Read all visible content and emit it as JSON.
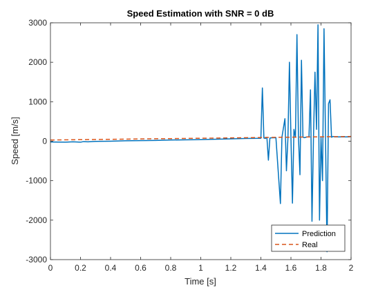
{
  "colors": {
    "prediction": "#0072BD",
    "real": "#D95319",
    "axis": "#262626",
    "background": "#ffffff"
  },
  "chart_data": {
    "type": "line",
    "title": "Speed Estimation with SNR = 0 dB",
    "xlabel": "Time [s]",
    "ylabel": "Speed [m/s]",
    "xlim": [
      0,
      2
    ],
    "ylim": [
      -3000,
      3000
    ],
    "xticks": [
      0,
      0.2,
      0.4,
      0.6,
      0.8,
      1,
      1.2,
      1.4,
      1.6,
      1.8,
      2
    ],
    "xtick_labels": [
      "0",
      "0.2",
      "0.4",
      "0.6",
      "0.8",
      "1",
      "1.2",
      "1.4",
      "1.6",
      "1.8",
      "2"
    ],
    "yticks": [
      -3000,
      -2000,
      -1000,
      0,
      1000,
      2000,
      3000
    ],
    "ytick_labels": [
      "-3000",
      "-2000",
      "-1000",
      "0",
      "1000",
      "2000",
      "3000"
    ],
    "grid": false,
    "legend_position": "bottom-right",
    "series": [
      {
        "name": "Prediction",
        "style": "solid",
        "x": [
          0,
          0.1,
          0.15,
          0.2,
          0.22,
          0.25,
          0.3,
          0.4,
          0.5,
          0.6,
          0.7,
          0.8,
          0.9,
          1.0,
          1.1,
          1.2,
          1.3,
          1.4,
          1.41,
          1.42,
          1.43,
          1.44,
          1.45,
          1.46,
          1.47,
          1.5,
          1.53,
          1.54,
          1.56,
          1.57,
          1.58,
          1.59,
          1.6,
          1.61,
          1.62,
          1.63,
          1.64,
          1.65,
          1.66,
          1.67,
          1.68,
          1.69,
          1.7,
          1.71,
          1.72,
          1.73,
          1.74,
          1.75,
          1.76,
          1.77,
          1.78,
          1.79,
          1.8,
          1.81,
          1.82,
          1.83,
          1.84,
          1.85,
          1.86,
          1.87,
          1.88,
          1.89,
          1.9,
          1.91,
          1.92,
          1.93,
          1.94,
          1.95,
          1.96,
          1.97,
          1.98,
          1.99,
          2.0
        ],
        "y": [
          -20,
          -25,
          -15,
          -25,
          -10,
          -15,
          -5,
          0,
          10,
          15,
          20,
          30,
          35,
          40,
          50,
          60,
          70,
          75,
          1350,
          80,
          70,
          100,
          -480,
          80,
          85,
          90,
          -1580,
          100,
          570,
          -750,
          80,
          2000,
          90,
          -1570,
          300,
          100,
          2700,
          100,
          -850,
          2050,
          100,
          90,
          100,
          110,
          110,
          1300,
          -2030,
          100,
          1750,
          300,
          2950,
          -2000,
          100,
          -1000,
          2850,
          100,
          -2800,
          950,
          1050,
          100,
          120,
          110,
          110,
          110,
          110,
          110,
          110,
          110,
          110,
          110,
          110,
          110,
          120
        ]
      },
      {
        "name": "Real",
        "style": "dashed",
        "x": [
          0,
          2
        ],
        "y": [
          30,
          120
        ]
      }
    ]
  }
}
